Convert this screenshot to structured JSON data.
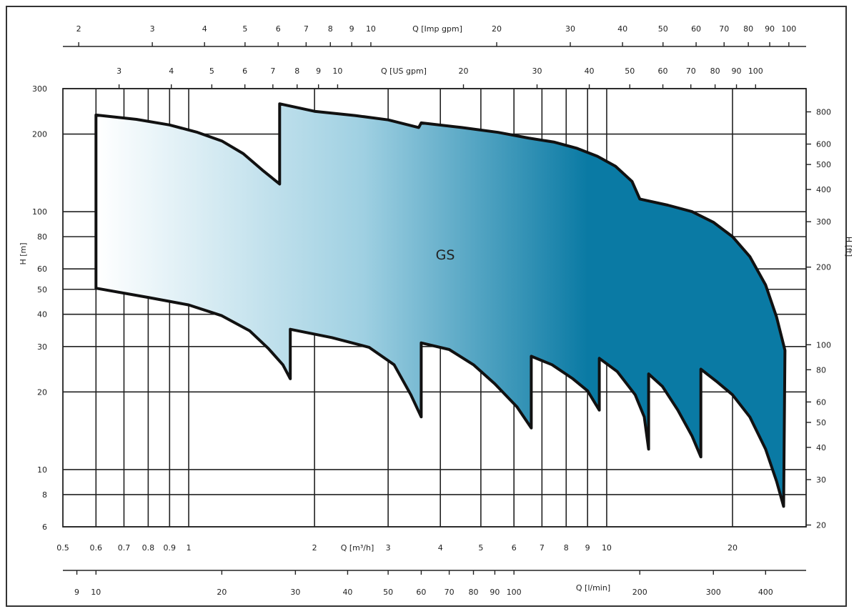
{
  "chart_data": {
    "type": "area",
    "region_label": "GS",
    "colors": {
      "gradient_start": "#ffffff",
      "gradient_mid": "#9fd0e2",
      "gradient_end": "#0a7aa4",
      "outline": "#111111",
      "grid": "#222222"
    },
    "x_main": {
      "label": "Q [m³/h]",
      "scale": "log",
      "range": [
        0.5,
        30
      ],
      "ticks": [
        0.5,
        0.6,
        0.7,
        0.8,
        0.9,
        1,
        2,
        3,
        4,
        5,
        6,
        7,
        8,
        9,
        10,
        20
      ],
      "tick_labels": [
        "0.5",
        "0.6",
        "0.7",
        "0.8",
        "0.9",
        "1",
        "2",
        "3",
        "4",
        "5",
        "6",
        "7",
        "8",
        "9",
        "10",
        "20"
      ]
    },
    "x_lmin": {
      "label": "Q [l/min]",
      "ticks": [
        9,
        10,
        20,
        30,
        40,
        50,
        60,
        70,
        80,
        90,
        100,
        200,
        300,
        400
      ],
      "tick_labels": [
        "9",
        "10",
        "20",
        "30",
        "40",
        "50",
        "60",
        "70",
        "80",
        "90",
        "100",
        "200",
        "300",
        "400"
      ]
    },
    "x_usgpm": {
      "label": "Q [US gpm]",
      "ticks": [
        3,
        4,
        5,
        6,
        7,
        8,
        9,
        10,
        20,
        30,
        40,
        50,
        60,
        70,
        80,
        90,
        100
      ],
      "tick_labels": [
        "3",
        "4",
        "5",
        "6",
        "7",
        "8",
        "9",
        "10",
        "20",
        "30",
        "40",
        "50",
        "60",
        "70",
        "80",
        "90",
        "100"
      ]
    },
    "x_impgpm": {
      "label": "Q [Imp gpm]",
      "ticks": [
        2,
        3,
        4,
        5,
        6,
        7,
        8,
        9,
        10,
        20,
        30,
        40,
        50,
        60,
        70,
        80,
        90,
        100
      ],
      "tick_labels": [
        "2",
        "3",
        "4",
        "5",
        "6",
        "7",
        "8",
        "9",
        "10",
        "20",
        "30",
        "40",
        "50",
        "60",
        "70",
        "80",
        "90",
        "100"
      ]
    },
    "y_main": {
      "label": "H [m]",
      "scale": "log",
      "range": [
        6,
        300
      ],
      "ticks": [
        6,
        8,
        10,
        20,
        30,
        40,
        50,
        60,
        80,
        100,
        200,
        300
      ],
      "tick_labels": [
        "6",
        "8",
        "10",
        "20",
        "30",
        "40",
        "50",
        "60",
        "80",
        "100",
        "200",
        "300"
      ]
    },
    "y_ft": {
      "label": "H [ft]",
      "ticks": [
        20,
        30,
        40,
        50,
        60,
        80,
        100,
        200,
        300,
        400,
        500,
        600,
        800
      ],
      "tick_labels": [
        "20",
        "30",
        "40",
        "50",
        "60",
        "80",
        "100",
        "200",
        "300",
        "400",
        "500",
        "600",
        "800"
      ]
    },
    "upper_boundary": [
      [
        0.6,
        237
      ],
      [
        0.75,
        228
      ],
      [
        0.9,
        217
      ],
      [
        1.05,
        203
      ],
      [
        1.2,
        188
      ],
      [
        1.35,
        168
      ],
      [
        1.5,
        145
      ],
      [
        1.65,
        128
      ],
      [
        1.65,
        262
      ],
      [
        2.0,
        245
      ],
      [
        2.5,
        236
      ],
      [
        3.0,
        227
      ],
      [
        3.55,
        212
      ],
      [
        3.6,
        221
      ],
      [
        4.5,
        212
      ],
      [
        5.5,
        203
      ],
      [
        6.5,
        193
      ],
      [
        7.5,
        186
      ],
      [
        8.5,
        176
      ],
      [
        9.5,
        164
      ],
      [
        10.5,
        150
      ],
      [
        11.5,
        131
      ],
      [
        12,
        112
      ],
      [
        14,
        106
      ],
      [
        16,
        100
      ],
      [
        18,
        91
      ],
      [
        20,
        80
      ],
      [
        22,
        67
      ],
      [
        24,
        52
      ],
      [
        25.5,
        39
      ],
      [
        26.7,
        29
      ]
    ],
    "lower_boundary": [
      [
        0.6,
        50.5
      ],
      [
        0.8,
        46.5
      ],
      [
        1.0,
        43.5
      ],
      [
        1.2,
        39.5
      ],
      [
        1.4,
        34.5
      ],
      [
        1.55,
        29.5
      ],
      [
        1.68,
        25.5
      ],
      [
        1.75,
        22.5
      ],
      [
        1.75,
        35
      ],
      [
        2.2,
        32.5
      ],
      [
        2.7,
        29.8
      ],
      [
        3.1,
        25.5
      ],
      [
        3.4,
        19.5
      ],
      [
        3.6,
        16
      ],
      [
        3.6,
        31
      ],
      [
        4.2,
        29.2
      ],
      [
        4.8,
        25.5
      ],
      [
        5.4,
        21.5
      ],
      [
        6.1,
        17.5
      ],
      [
        6.6,
        14.5
      ],
      [
        6.6,
        27.5
      ],
      [
        7.4,
        25.5
      ],
      [
        8.3,
        22.5
      ],
      [
        9.0,
        20.2
      ],
      [
        9.6,
        17
      ],
      [
        9.6,
        27
      ],
      [
        10.6,
        24
      ],
      [
        11.7,
        19.5
      ],
      [
        12.3,
        16
      ],
      [
        12.6,
        12
      ],
      [
        12.6,
        23.5
      ],
      [
        13.6,
        21
      ],
      [
        14.8,
        17
      ],
      [
        16.0,
        13.5
      ],
      [
        16.8,
        11.2
      ],
      [
        16.8,
        24.5
      ],
      [
        18.3,
        22
      ],
      [
        20.0,
        19.5
      ],
      [
        22.0,
        16
      ],
      [
        24.0,
        12
      ],
      [
        25.5,
        9
      ],
      [
        26.5,
        7.2
      ]
    ]
  }
}
